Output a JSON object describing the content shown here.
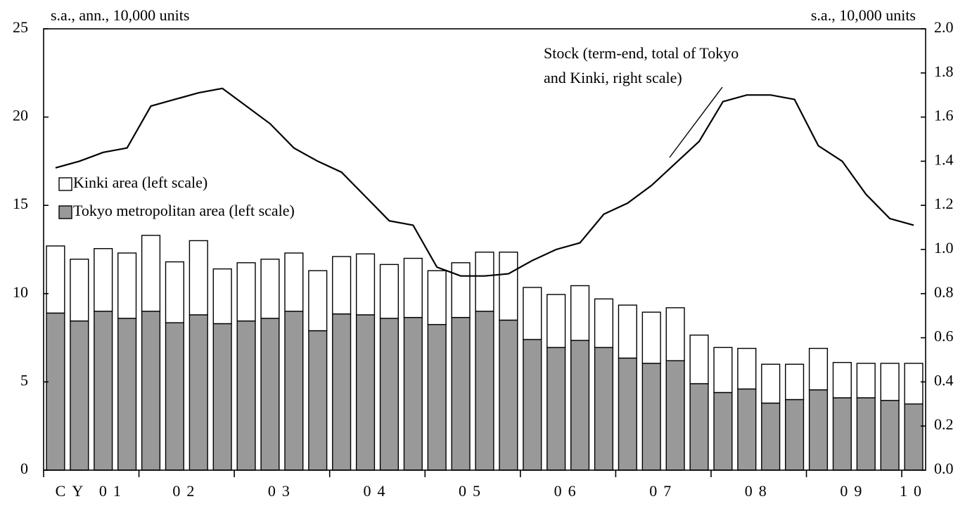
{
  "chart_data": {
    "type": "stacked-bar-line",
    "left_unit": "s.a., ann., 10,000 units",
    "right_unit": "s.a., 10,000 units",
    "categories": [
      "CY 01",
      null,
      null,
      null,
      "02",
      null,
      null,
      null,
      "03",
      null,
      null,
      null,
      "04",
      null,
      null,
      null,
      "05",
      null,
      null,
      null,
      "06",
      null,
      null,
      null,
      "07",
      null,
      null,
      null,
      "08",
      null,
      null,
      null,
      "09",
      null,
      null,
      null,
      "10"
    ],
    "series": [
      {
        "name": "Tokyo metropolitan area (left scale)",
        "color": "#999999",
        "values": [
          8.9,
          8.45,
          9.0,
          8.6,
          9.0,
          8.35,
          8.8,
          8.3,
          8.45,
          8.6,
          9.0,
          7.9,
          8.85,
          8.8,
          8.6,
          8.65,
          8.25,
          8.65,
          9.0,
          8.5,
          7.4,
          6.95,
          7.35,
          6.95,
          6.35,
          6.05,
          6.2,
          4.9,
          4.4,
          4.6,
          3.8,
          4.0,
          4.55,
          4.1,
          4.1,
          3.95,
          3.75
        ]
      },
      {
        "name": "Kinki area (left scale)",
        "color": "#ffffff",
        "values": [
          3.8,
          3.5,
          3.55,
          3.7,
          4.3,
          3.45,
          4.2,
          3.1,
          3.3,
          3.35,
          3.3,
          3.4,
          3.25,
          3.45,
          3.05,
          3.35,
          3.05,
          3.1,
          3.35,
          3.85,
          2.95,
          3.0,
          3.1,
          2.75,
          3.0,
          2.9,
          3.0,
          2.75,
          2.55,
          2.3,
          2.2,
          2.0,
          2.35,
          2.0,
          1.95,
          2.1,
          2.3
        ]
      },
      {
        "axis": "y2",
        "color": "#000000",
        "values": [
          1.37,
          1.4,
          1.44,
          1.46,
          1.65,
          1.68,
          1.71,
          1.73,
          1.65,
          1.57,
          1.46,
          1.4,
          1.35,
          1.24,
          1.13,
          1.11,
          0.92,
          0.88,
          0.88,
          0.89,
          0.95,
          1.0,
          1.03,
          1.16,
          1.21,
          1.29,
          1.39,
          1.49,
          1.67,
          1.7,
          1.7,
          1.68,
          1.47,
          1.4,
          1.25,
          1.14,
          1.11
        ]
      }
    ],
    "annotation": [
      "Stock (term-end, total of Tokyo",
      "and Kinki, right scale)"
    ],
    "ylim": [
      0,
      25
    ],
    "yticks": [
      0,
      5,
      10,
      15,
      20,
      25
    ],
    "y2lim": [
      0,
      2
    ],
    "y2ticks": [
      {
        "value": 0,
        "label": "0.0"
      },
      0.2,
      0.4,
      0.6,
      0.8,
      {
        "value": 1,
        "label": "1.0"
      },
      1.2,
      1.4,
      1.6,
      1.8,
      {
        "value": 2,
        "label": "2.0"
      }
    ],
    "grid": false
  }
}
